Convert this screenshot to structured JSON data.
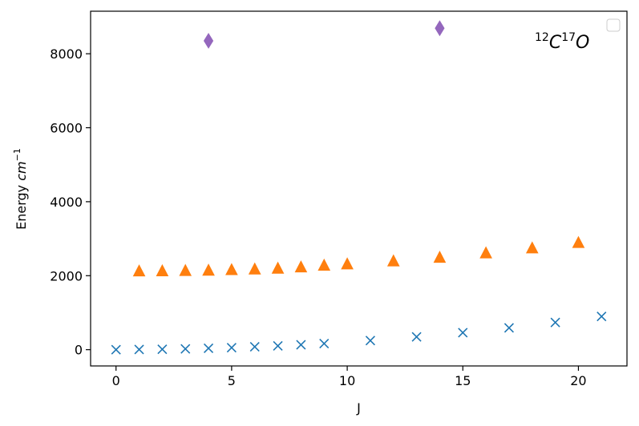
{
  "chart_data": {
    "type": "scatter",
    "xlabel": "J",
    "ylabel": {
      "text": "Energy ",
      "unit": "cm",
      "unit_exp": "−1"
    },
    "annotation": {
      "pre1": "12",
      "sym1": "C",
      "pre2": "17",
      "sym2": "O"
    },
    "xlim": [
      -1.1,
      22.1
    ],
    "ylim": [
      -440,
      9150
    ],
    "xticks": [
      0,
      5,
      10,
      15,
      20
    ],
    "yticks": [
      0,
      2000,
      4000,
      6000,
      8000
    ],
    "xtick_labels": [
      "0",
      "5",
      "10",
      "15",
      "20"
    ],
    "ytick_labels": [
      "0",
      "2000",
      "4000",
      "6000",
      "8000"
    ],
    "legend": "top-right, empty",
    "series": [
      {
        "marker": "x",
        "color": "#1f77b4",
        "x": [
          0,
          1,
          2,
          3,
          4,
          5,
          6,
          7,
          8,
          9,
          11,
          13,
          15,
          17,
          19,
          21
        ],
        "y": [
          0,
          4,
          11,
          22,
          37,
          55,
          77,
          103,
          132,
          165,
          247,
          345,
          459,
          589,
          735,
          897
        ]
      },
      {
        "marker": "triangle",
        "color": "#ff7f0e",
        "x": [
          1,
          2,
          3,
          4,
          5,
          6,
          7,
          8,
          9,
          10,
          12,
          14,
          16,
          18,
          20
        ],
        "y": [
          2122,
          2125,
          2133,
          2142,
          2157,
          2174,
          2196,
          2230,
          2278,
          2312,
          2394,
          2491,
          2610,
          2744,
          2890
        ]
      },
      {
        "marker": "thin_diamond",
        "color": "#9467bd",
        "x": [
          4,
          14
        ],
        "y": [
          8350,
          8690
        ]
      }
    ]
  }
}
